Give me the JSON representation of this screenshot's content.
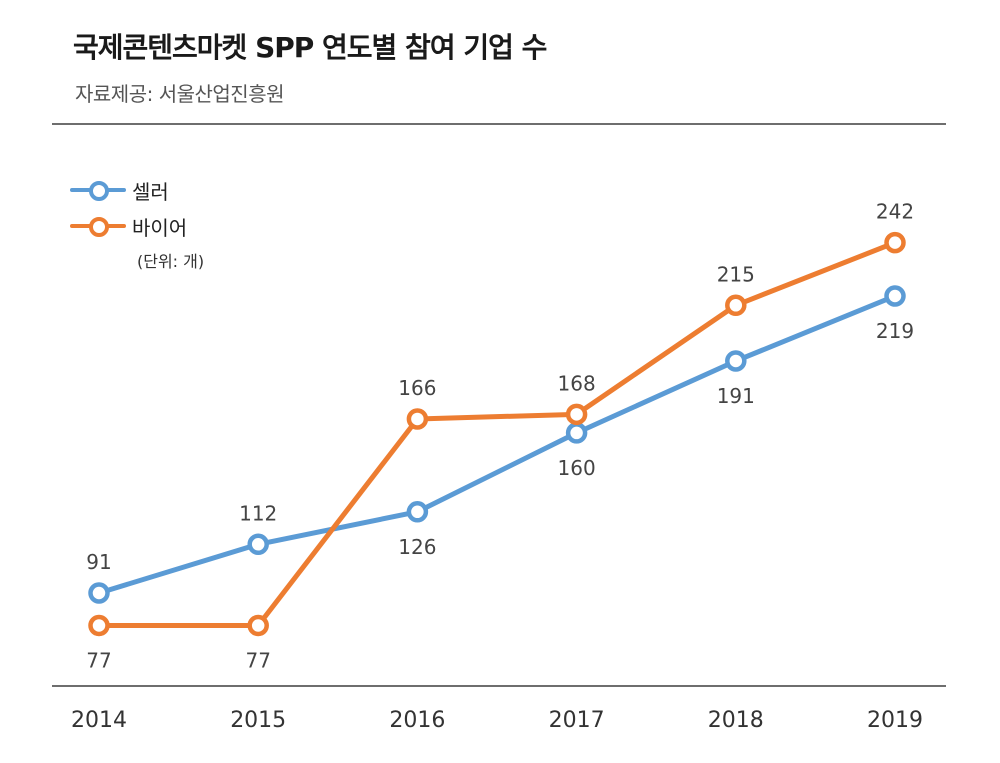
{
  "title": "국제콘텐츠마켓 SPP 연도별 참여 기업 수",
  "source": "자료제공: 서울산업진흥원",
  "unit": "(단위: 개)",
  "colors": {
    "seller": "#5b9bd5",
    "buyer": "#ed7d31",
    "rule": "#6e6e6e"
  },
  "chart_data": {
    "type": "line",
    "title": "국제콘텐츠마켓 SPP 연도별 참여 기업 수",
    "categories": [
      "2014",
      "2015",
      "2016",
      "2017",
      "2018",
      "2019"
    ],
    "series": [
      {
        "name": "셀러",
        "values": [
          91,
          112,
          126,
          160,
          191,
          219
        ]
      },
      {
        "name": "바이어",
        "values": [
          77,
          77,
          166,
          168,
          215,
          242
        ]
      }
    ],
    "xlabel": "",
    "ylabel": "",
    "ylim": [
      40,
      260
    ],
    "grid": false,
    "legend": "top-left"
  }
}
